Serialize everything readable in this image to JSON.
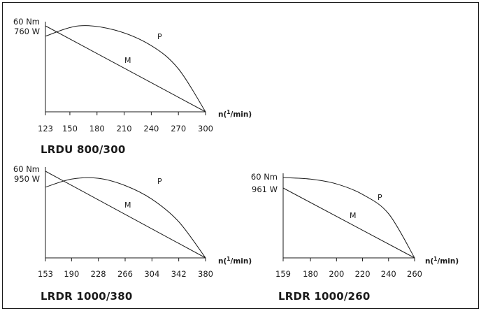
{
  "chart_data": [
    {
      "type": "line",
      "title": "LRDU 800/300",
      "xlabel": "n(1/min)",
      "xlabel_parts": [
        "n(",
        "1",
        "/min)"
      ],
      "x_ticks": [
        123,
        150,
        180,
        210,
        240,
        270,
        300
      ],
      "xlim": [
        123,
        300
      ],
      "y_labels": [
        "60 Nm",
        "760 W"
      ],
      "series": [
        {
          "name": "M",
          "x": [
            123,
            300
          ],
          "y": [
            1,
            0
          ]
        },
        {
          "name": "P",
          "x": [
            123,
            160,
            200,
            240,
            270,
            300
          ],
          "y": [
            0.88,
            1.0,
            0.95,
            0.77,
            0.5,
            0
          ]
        }
      ]
    },
    {
      "type": "line",
      "title": "LRDR 1000/380",
      "xlabel": "n(1/min)",
      "xlabel_parts": [
        "n(",
        "1",
        "/min)"
      ],
      "x_ticks": [
        153,
        190,
        228,
        266,
        304,
        342,
        380
      ],
      "xlim": [
        153,
        380
      ],
      "y_labels": [
        "60 Nm",
        "950 W"
      ],
      "series": [
        {
          "name": "M",
          "x": [
            153,
            380
          ],
          "y": [
            1,
            0
          ]
        },
        {
          "name": "P",
          "x": [
            153,
            190,
            228,
            266,
            304,
            342,
            380
          ],
          "y": [
            0.88,
            0.98,
            0.99,
            0.9,
            0.73,
            0.45,
            0
          ]
        }
      ]
    },
    {
      "type": "line",
      "title": "LRDR 1000/260",
      "xlabel": "n(1/min)",
      "xlabel_parts": [
        "n(",
        "1",
        "/min)"
      ],
      "x_ticks": [
        159,
        180,
        200,
        220,
        240,
        260
      ],
      "xlim": [
        159,
        260
      ],
      "y_labels": [
        "60 Nm",
        "961 W"
      ],
      "series": [
        {
          "name": "M",
          "x": [
            159,
            260
          ],
          "y": [
            0.82,
            0
          ]
        },
        {
          "name": "P",
          "x": [
            159,
            180,
            200,
            220,
            240,
            260
          ],
          "y": [
            1.0,
            0.98,
            0.92,
            0.79,
            0.55,
            0
          ]
        }
      ]
    }
  ]
}
